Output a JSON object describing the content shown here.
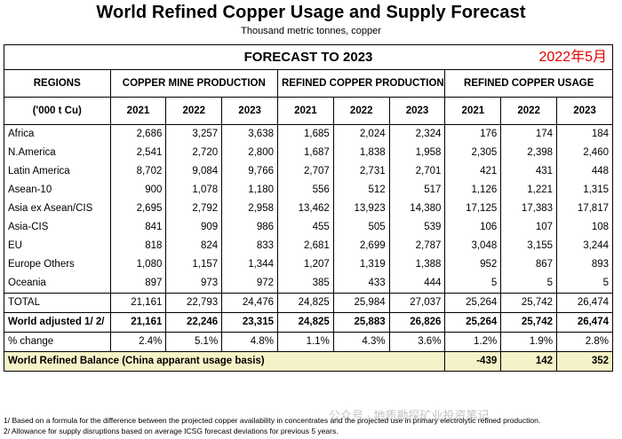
{
  "title": "World Refined Copper Usage and Supply Forecast",
  "subtitle": "Thousand metric tonnes, copper",
  "forecast_heading": "FORECAST TO 2023",
  "date_stamp": "2022年5月",
  "header": {
    "regions": "REGIONS",
    "units": "('000 t Cu)",
    "groups": [
      "COPPER MINE PRODUCTION",
      "REFINED COPPER PRODUCTION",
      "REFINED COPPER USAGE"
    ],
    "years": [
      "2021",
      "2022",
      "2023"
    ]
  },
  "rows": [
    {
      "region": "Africa",
      "values": [
        "2,686",
        "3,257",
        "3,638",
        "1,685",
        "2,024",
        "2,324",
        "176",
        "174",
        "184"
      ]
    },
    {
      "region": "N.America",
      "values": [
        "2,541",
        "2,720",
        "2,800",
        "1,687",
        "1,838",
        "1,958",
        "2,305",
        "2,398",
        "2,460"
      ]
    },
    {
      "region": "Latin America",
      "values": [
        "8,702",
        "9,084",
        "9,766",
        "2,707",
        "2,731",
        "2,701",
        "421",
        "431",
        "448"
      ]
    },
    {
      "region": "Asean-10",
      "values": [
        "900",
        "1,078",
        "1,180",
        "556",
        "512",
        "517",
        "1,126",
        "1,221",
        "1,315"
      ]
    },
    {
      "region": "Asia ex Asean/CIS",
      "values": [
        "2,695",
        "2,792",
        "2,958",
        "13,462",
        "13,923",
        "14,380",
        "17,125",
        "17,383",
        "17,817"
      ]
    },
    {
      "region": "Asia-CIS",
      "values": [
        "841",
        "909",
        "986",
        "455",
        "505",
        "539",
        "106",
        "107",
        "108"
      ]
    },
    {
      "region": "EU",
      "values": [
        "818",
        "824",
        "833",
        "2,681",
        "2,699",
        "2,787",
        "3,048",
        "3,155",
        "3,244"
      ]
    },
    {
      "region": "Europe Others",
      "values": [
        "1,080",
        "1,157",
        "1,344",
        "1,207",
        "1,319",
        "1,388",
        "952",
        "867",
        "893"
      ]
    },
    {
      "region": "Oceania",
      "values": [
        "897",
        "973",
        "972",
        "385",
        "433",
        "444",
        "5",
        "5",
        "5"
      ]
    }
  ],
  "total": {
    "region": "TOTAL",
    "values": [
      "21,161",
      "22,793",
      "24,476",
      "24,825",
      "25,984",
      "27,037",
      "25,264",
      "25,742",
      "26,474"
    ]
  },
  "world_adjusted": {
    "region": "World adjusted 1/ 2/",
    "values": [
      "21,161",
      "22,246",
      "23,315",
      "24,825",
      "25,883",
      "26,826",
      "25,264",
      "25,742",
      "26,474"
    ]
  },
  "pct_change": {
    "region": "% change",
    "values": [
      "2.4%",
      "5.1%",
      "4.8%",
      "1.1%",
      "4.3%",
      "3.6%",
      "1.2%",
      "1.9%",
      "2.8%"
    ]
  },
  "balance": {
    "label": "World Refined Balance (China apparant usage basis)",
    "values": [
      "-439",
      "142",
      "352"
    ]
  },
  "footnotes": [
    "1/ Based on a formula for the difference between the projected copper availability in concentrates and the projected use in primary electrolytic refined production.",
    "2/ Allowance for supply disruptions based on average ICSG forecast deviations for previous 5 years."
  ],
  "watermark": "公众号 · 地质勘探矿业投资笔记"
}
